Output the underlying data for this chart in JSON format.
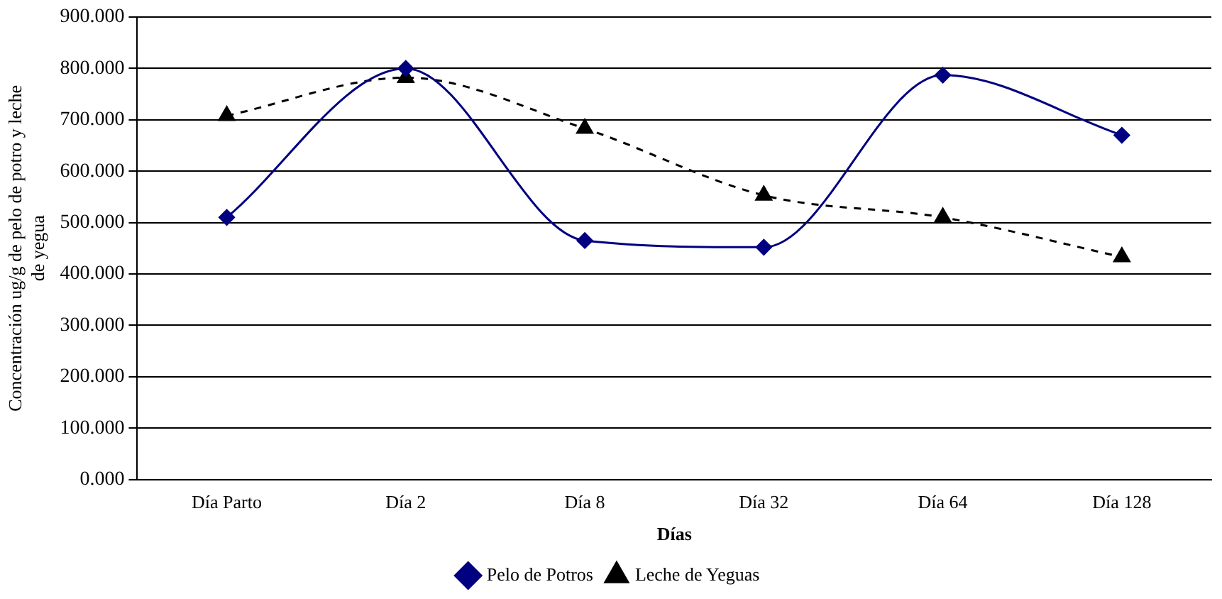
{
  "chart_data": {
    "type": "line",
    "xlabel": "Días",
    "ylabel": "Concentración ug/g de pelo de potro y leche de yegua",
    "categories": [
      "Día Parto",
      "Día 2",
      "Día 8",
      "Día 32",
      "Día 64",
      "Día 128"
    ],
    "series": [
      {
        "name": "Pelo de Potros",
        "color": "#000080",
        "values": [
          510,
          800,
          465,
          452,
          787,
          670
        ],
        "marker": "diamond",
        "line_style": "solid"
      },
      {
        "name": "Leche de Yeguas",
        "color": "#000000",
        "values": [
          708,
          782,
          683,
          553,
          510,
          433
        ],
        "marker": "triangle",
        "line_style": "dashed"
      }
    ],
    "ylim": [
      0,
      900
    ],
    "yticks": [
      {
        "value": 0,
        "label": "0.000"
      },
      {
        "value": 100,
        "label": "100.000"
      },
      {
        "value": 200,
        "label": "200.000"
      },
      {
        "value": 300,
        "label": "300.000"
      },
      {
        "value": 400,
        "label": "400.000"
      },
      {
        "value": 500,
        "label": "500.000"
      },
      {
        "value": 600,
        "label": "600.000"
      },
      {
        "value": 700,
        "label": "700.000"
      },
      {
        "value": 800,
        "label": "800.000"
      },
      {
        "value": 900,
        "label": "900.000"
      }
    ],
    "grid": "y",
    "legend": "bottom"
  }
}
